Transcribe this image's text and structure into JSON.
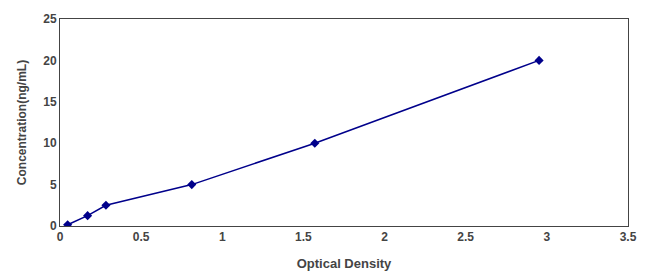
{
  "chart_data": {
    "type": "line",
    "x": [
      0.047,
      0.17,
      0.283,
      0.812,
      1.57,
      2.952
    ],
    "values": [
      0.156,
      1.25,
      2.5,
      5.0,
      10.0,
      20.0
    ],
    "color": "#00008B",
    "marker": "diamond",
    "line_style": "solid",
    "xlabel": "Optical Density",
    "ylabel": "Concentration(ng/mL)",
    "xlim": [
      0,
      3.5
    ],
    "ylim": [
      0,
      25
    ],
    "xticks": [
      0,
      0.5,
      1,
      1.5,
      2,
      2.5,
      3,
      3.5
    ],
    "yticks": [
      0,
      5,
      10,
      15,
      20,
      25
    ],
    "grid": false
  }
}
